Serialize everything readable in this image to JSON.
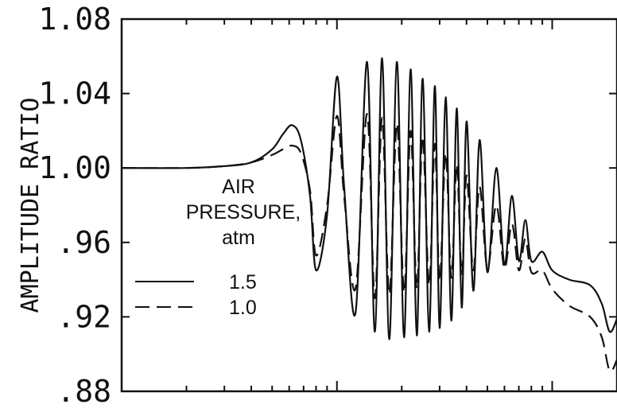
{
  "chart_data": {
    "type": "line",
    "ylabel": "AMPLITUDE RATIO",
    "ylim": [
      0.88,
      1.08
    ],
    "yticks": [
      {
        "value": 1.08,
        "label": "1.08"
      },
      {
        "value": 1.04,
        "label": "1.04"
      },
      {
        "value": 1.0,
        "label": "1.00"
      },
      {
        "value": 0.96,
        "label": ".96"
      },
      {
        "value": 0.92,
        "label": ".92"
      },
      {
        "value": 0.88,
        "label": ".88"
      }
    ],
    "x_scale": "log",
    "xlim": [
      0.1,
      20
    ],
    "grid": false,
    "legend": {
      "title_lines": [
        "AIR",
        "PRESSURE,",
        "atm"
      ],
      "placement": "center-left"
    },
    "series": [
      {
        "name": "1.5",
        "style": "solid",
        "x": [
          0.1,
          0.2,
          0.3,
          0.4,
          0.5,
          0.56,
          0.62,
          0.68,
          0.75,
          0.8,
          0.9,
          1.0,
          1.08,
          1.22,
          1.38,
          1.5,
          1.62,
          1.75,
          1.9,
          2.05,
          2.2,
          2.35,
          2.5,
          2.68,
          2.85,
          3.0,
          3.2,
          3.4,
          3.6,
          3.8,
          4.0,
          4.3,
          4.6,
          5.0,
          5.5,
          6.0,
          6.5,
          7.0,
          7.5,
          8.0,
          9.0,
          10.0,
          12.0,
          15.0,
          17.0,
          18.5,
          20.0
        ],
        "y": [
          1.0,
          1.0,
          1.001,
          1.003,
          1.01,
          1.018,
          1.023,
          1.015,
          0.985,
          0.945,
          0.975,
          1.049,
          0.99,
          0.922,
          1.057,
          0.912,
          1.059,
          0.908,
          1.057,
          0.909,
          1.053,
          0.91,
          1.048,
          0.912,
          1.044,
          0.914,
          1.038,
          0.918,
          1.032,
          0.925,
          1.025,
          0.934,
          1.015,
          0.944,
          1.0,
          0.948,
          0.985,
          0.95,
          0.972,
          0.95,
          0.955,
          0.945,
          0.94,
          0.937,
          0.927,
          0.912,
          0.919
        ]
      },
      {
        "name": "1.0",
        "style": "dashed",
        "x": [
          0.1,
          0.2,
          0.3,
          0.4,
          0.5,
          0.56,
          0.62,
          0.68,
          0.75,
          0.8,
          0.9,
          1.0,
          1.08,
          1.22,
          1.38,
          1.5,
          1.62,
          1.75,
          1.9,
          2.05,
          2.2,
          2.35,
          2.5,
          2.68,
          2.85,
          3.0,
          3.2,
          3.4,
          3.6,
          3.8,
          4.0,
          4.3,
          4.6,
          5.0,
          5.5,
          6.0,
          6.5,
          7.0,
          7.5,
          8.0,
          9.0,
          10.0,
          12.0,
          15.0,
          17.0,
          18.5,
          20.0
        ],
        "y": [
          1.0,
          1.0,
          1.001,
          1.003,
          1.007,
          1.01,
          1.012,
          1.008,
          0.988,
          0.953,
          0.98,
          1.028,
          0.985,
          0.935,
          1.029,
          0.93,
          1.027,
          0.932,
          1.024,
          0.933,
          1.02,
          0.935,
          1.017,
          0.937,
          1.013,
          0.939,
          1.008,
          0.941,
          1.002,
          0.943,
          0.996,
          0.945,
          0.99,
          0.946,
          0.98,
          0.946,
          0.97,
          0.945,
          0.962,
          0.944,
          0.945,
          0.935,
          0.926,
          0.92,
          0.909,
          0.891,
          0.897
        ]
      }
    ]
  }
}
